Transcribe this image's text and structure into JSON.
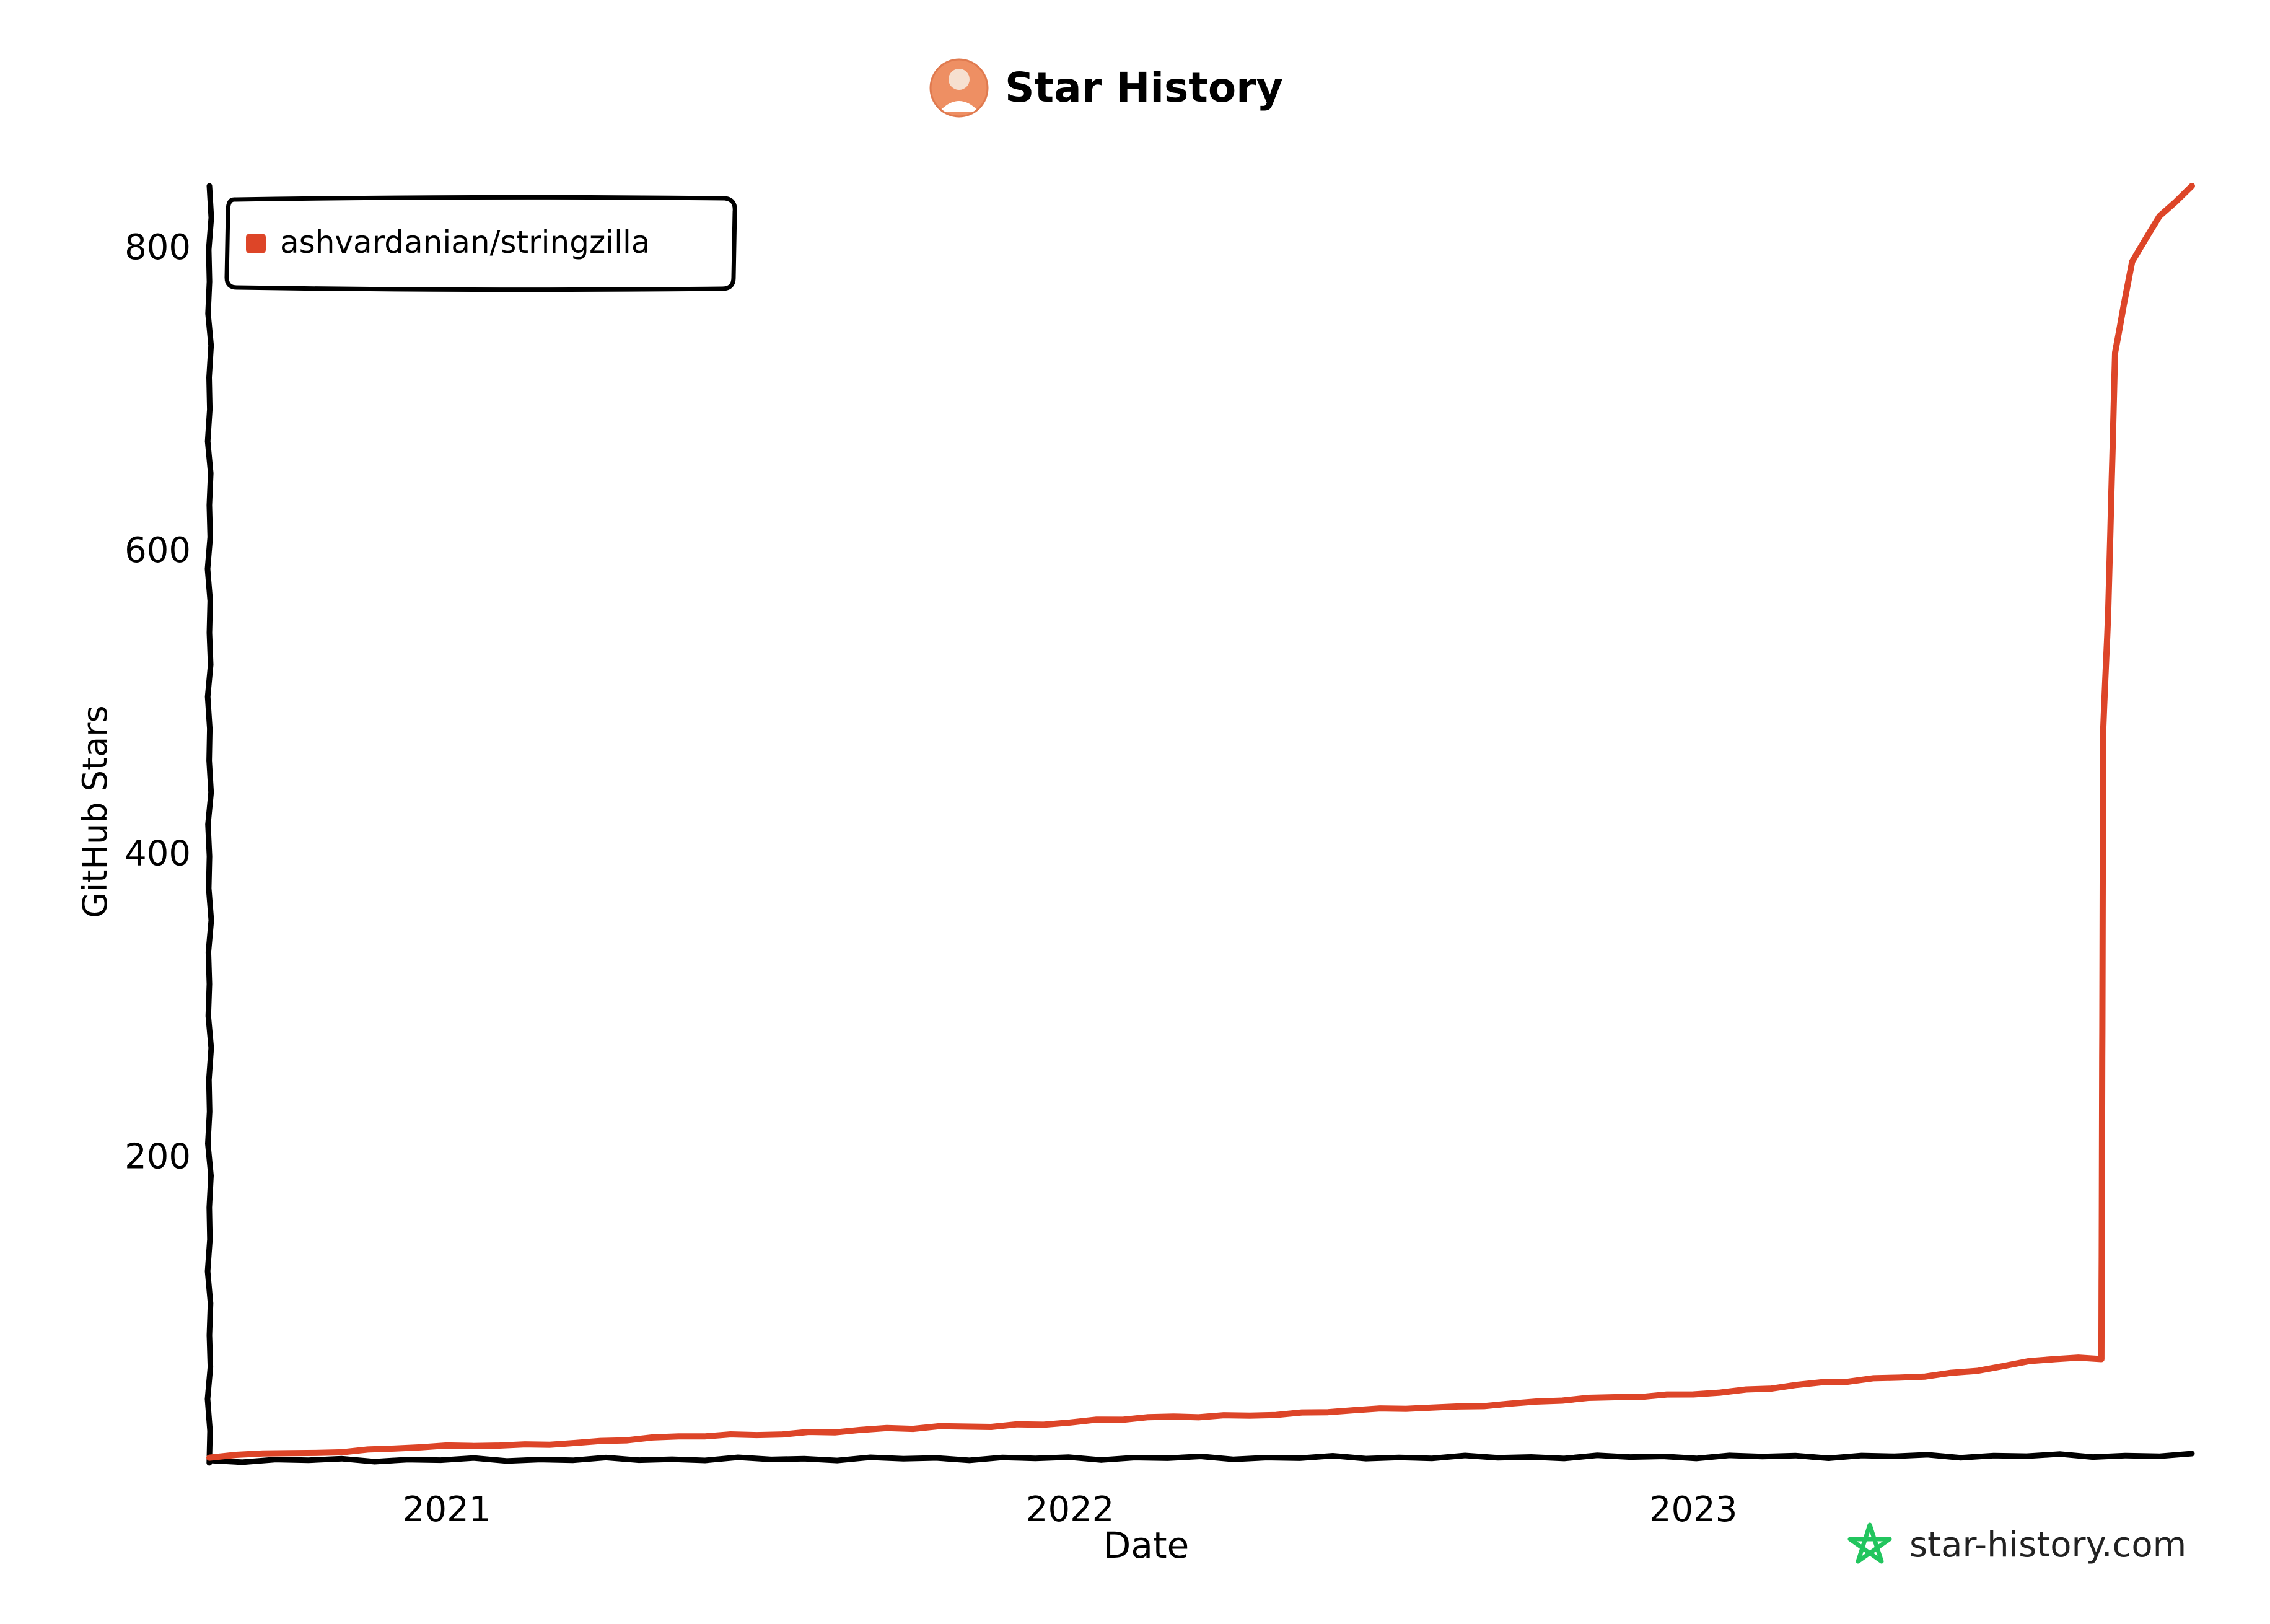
{
  "header": {
    "title": "Star History",
    "avatar_icon": "user-avatar-icon"
  },
  "watermark": {
    "text": "star-history.com",
    "icon": "star-outline-icon",
    "icon_color": "#22c55e"
  },
  "colors": {
    "series": "#dd4528",
    "axis": "#000000",
    "background": "#ffffff"
  },
  "chart_data": {
    "type": "line",
    "title": "Star History",
    "xlabel": "Date",
    "ylabel": "GitHub Stars",
    "x_ticks": [
      "2021",
      "2022",
      "2023"
    ],
    "y_ticks": [
      200,
      400,
      600,
      800
    ],
    "xlim": [
      "2020-08-15",
      "2023-10-20"
    ],
    "ylim": [
      0,
      840
    ],
    "grid": false,
    "legend_position": "top-left",
    "series": [
      {
        "name": "ashvardanian/stringzilla",
        "color": "#dd4528",
        "points": [
          {
            "x": "2020-08-15",
            "y": 1
          },
          {
            "x": "2020-10-01",
            "y": 4
          },
          {
            "x": "2020-12-01",
            "y": 7
          },
          {
            "x": "2021-02-01",
            "y": 9
          },
          {
            "x": "2021-04-01",
            "y": 12
          },
          {
            "x": "2021-06-01",
            "y": 15
          },
          {
            "x": "2021-08-01",
            "y": 18
          },
          {
            "x": "2021-10-01",
            "y": 20
          },
          {
            "x": "2021-12-01",
            "y": 23
          },
          {
            "x": "2022-02-01",
            "y": 26
          },
          {
            "x": "2022-04-01",
            "y": 29
          },
          {
            "x": "2022-06-01",
            "y": 31
          },
          {
            "x": "2022-08-01",
            "y": 34
          },
          {
            "x": "2022-10-01",
            "y": 38
          },
          {
            "x": "2022-12-01",
            "y": 41
          },
          {
            "x": "2023-02-01",
            "y": 46
          },
          {
            "x": "2023-04-01",
            "y": 51
          },
          {
            "x": "2023-06-01",
            "y": 57
          },
          {
            "x": "2023-08-01",
            "y": 66
          },
          {
            "x": "2023-08-28",
            "y": 66
          },
          {
            "x": "2023-08-29",
            "y": 480
          },
          {
            "x": "2023-09-01",
            "y": 560
          },
          {
            "x": "2023-09-05",
            "y": 730
          },
          {
            "x": "2023-09-15",
            "y": 790
          },
          {
            "x": "2023-10-01",
            "y": 820
          },
          {
            "x": "2023-10-20",
            "y": 840
          }
        ]
      }
    ]
  }
}
